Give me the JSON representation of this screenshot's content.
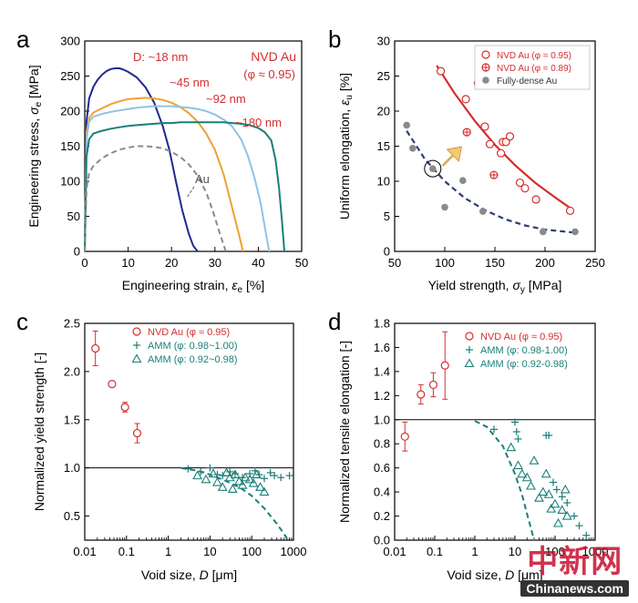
{
  "panels": {
    "a": {
      "letter": "a",
      "xlabel": "Engineering strain, ",
      "xsym": "ε",
      "xsub": "e",
      "xunit": " [%]",
      "ylabel": "Engineering stress, ",
      "ysym": "σ",
      "ysub": "e",
      "yunit": " [MPa]",
      "legend_title": "NVD Au",
      "legend_sub": "(φ ≈ 0.95)"
    },
    "b": {
      "letter": "b",
      "xlabel": "Yield strength, ",
      "xsym": "σ",
      "xsub": "y",
      "xunit": " [MPa]",
      "ylabel": "Uniform elongation, ",
      "ysym": "ε",
      "ysub": "u",
      "yunit": " [%]"
    },
    "c": {
      "letter": "c",
      "xlabel": "Void size, ",
      "xsym": "D",
      "xunit": " [μm]",
      "ylabel": "Normalized yield strength [-]"
    },
    "d": {
      "letter": "d",
      "xlabel": "Void size, ",
      "xsym": "D",
      "xunit": " [μm]",
      "ylabel": "Normalized tensile elongation [-]"
    }
  },
  "watermark": {
    "cn": "中新网",
    "en": "Chinanews.com"
  },
  "colors": {
    "red": "#d62d2d",
    "blue": "#1f2a8f",
    "orange": "#f0a030",
    "lightblue": "#8ec3e6",
    "teal": "#1a7f78",
    "gray": "#8a8a8a",
    "darkdash": "#2d3f73",
    "arrow": "#f7c873"
  },
  "chart_data": [
    {
      "panel": "a",
      "type": "line",
      "xlim": [
        0,
        50
      ],
      "ylim": [
        0,
        300
      ],
      "xticks": [
        0,
        10,
        20,
        30,
        40,
        50
      ],
      "yticks": [
        0,
        50,
        100,
        150,
        200,
        250,
        300
      ],
      "series": [
        {
          "name": "D: ~18 nm",
          "color": "blue",
          "dash": false,
          "x": [
            0,
            0.4,
            1,
            2,
            3,
            4,
            5,
            6,
            7,
            8,
            9,
            10,
            12,
            14,
            16,
            18,
            19.5,
            21,
            22.5,
            24,
            25,
            26
          ],
          "y": [
            0,
            185,
            218,
            235,
            245,
            252,
            257,
            260,
            261,
            261,
            259,
            256,
            248,
            234,
            212,
            178,
            145,
            100,
            58,
            25,
            8,
            0
          ]
        },
        {
          "name": "~45 nm",
          "color": "orange",
          "dash": false,
          "x": [
            0,
            0.4,
            1,
            2,
            4,
            6,
            8,
            10,
            12,
            14,
            16,
            18,
            20,
            22,
            24,
            26,
            28,
            30,
            32,
            34,
            35.5,
            36.5
          ],
          "y": [
            0,
            170,
            190,
            198,
            204,
            210,
            214,
            217,
            218,
            219,
            218,
            216,
            212,
            206,
            197,
            185,
            168,
            145,
            110,
            62,
            25,
            0
          ]
        },
        {
          "name": "~92 nm",
          "color": "lightblue",
          "dash": false,
          "x": [
            0,
            0.4,
            1,
            2,
            4,
            6,
            8,
            10,
            12,
            14,
            16,
            18,
            20,
            22,
            24,
            26,
            28,
            30,
            32,
            34,
            36,
            37.5,
            39,
            40.5,
            41.5,
            42.5
          ],
          "y": [
            0,
            160,
            185,
            192,
            196,
            199,
            201,
            203,
            205,
            206,
            207,
            207,
            207,
            206,
            205,
            203,
            200,
            195,
            188,
            178,
            160,
            138,
            108,
            70,
            35,
            0
          ]
        },
        {
          "name": "~180 nm",
          "color": "teal",
          "dash": false,
          "x": [
            0,
            0.4,
            1,
            2,
            4,
            6,
            8,
            10,
            12,
            14,
            16,
            18,
            20,
            22,
            24,
            26,
            28,
            30,
            32,
            34,
            36,
            38,
            40,
            41.5,
            43,
            44,
            44.8,
            45.5,
            46
          ],
          "y": [
            0,
            135,
            160,
            168,
            172,
            175,
            177,
            179,
            180,
            181,
            182,
            183,
            183,
            184,
            184,
            184,
            184,
            184,
            184,
            183,
            182,
            180,
            176,
            170,
            158,
            130,
            90,
            40,
            0
          ]
        },
        {
          "name": "Au",
          "color": "gray",
          "dash": true,
          "x": [
            0,
            0.4,
            1,
            2,
            4,
            6,
            8,
            10,
            12,
            14,
            16,
            18,
            20,
            22,
            24,
            26,
            28,
            29.5,
            31,
            32.5
          ],
          "y": [
            0,
            90,
            112,
            122,
            133,
            140,
            145,
            148,
            150,
            150,
            149,
            147,
            142,
            135,
            124,
            108,
            84,
            58,
            28,
            0
          ]
        }
      ],
      "annotations": [
        "D: ~18 nm",
        "~45 nm",
        "~92 nm",
        "~180 nm",
        "Au"
      ]
    },
    {
      "panel": "b",
      "type": "scatter",
      "xlim": [
        50,
        250
      ],
      "ylim": [
        0,
        30
      ],
      "xticks": [
        50,
        100,
        150,
        200,
        250
      ],
      "yticks": [
        0,
        5,
        10,
        15,
        20,
        25,
        30
      ],
      "legend": [
        "NVD Au (φ ≈ 0.95)",
        "NVD Au (φ ≈ 0.89)",
        "Fully-dense Au"
      ],
      "series": [
        {
          "name": "NVD Au (φ ≈ 0.95)",
          "marker": "circle-open",
          "color": "red",
          "x": [
            96,
            121,
            133,
            140,
            145,
            156,
            158,
            161,
            165,
            175,
            180,
            191,
            225
          ],
          "y": [
            25.7,
            21.7,
            24.0,
            17.8,
            15.3,
            14.0,
            15.6,
            15.6,
            16.4,
            9.8,
            9.0,
            7.4,
            5.8
          ]
        },
        {
          "name": "NVD Au (φ ≈ 0.89)",
          "marker": "circle-cross",
          "color": "red",
          "x": [
            122,
            149
          ],
          "y": [
            17.0,
            10.9
          ]
        },
        {
          "name": "Fully-dense Au",
          "marker": "dot",
          "color": "gray",
          "x": [
            62,
            68,
            88,
            100,
            118,
            138,
            198,
            230
          ],
          "y": [
            18.0,
            14.7,
            11.8,
            6.3,
            10.1,
            5.7,
            2.8,
            2.8
          ]
        }
      ],
      "fits": [
        {
          "color": "red",
          "dash": false,
          "x": [
            92,
            110,
            130,
            150,
            170,
            190,
            210,
            228
          ],
          "y": [
            26.5,
            22.5,
            18.6,
            15.2,
            12.3,
            9.8,
            7.7,
            5.9
          ]
        },
        {
          "color": "darkdash",
          "dash": true,
          "x": [
            62,
            80,
            100,
            120,
            140,
            160,
            180,
            200,
            228
          ],
          "y": [
            17.2,
            13.2,
            10.0,
            7.6,
            5.9,
            4.6,
            3.7,
            3.1,
            2.7
          ]
        }
      ]
    },
    {
      "panel": "c",
      "type": "scatter",
      "xscale": "log",
      "xlim": [
        0.01,
        1000
      ],
      "ylim": [
        0.25,
        2.5
      ],
      "xticks": [
        0.01,
        0.1,
        1,
        10,
        100,
        1000
      ],
      "xticklabels": [
        "0.01",
        "0.1",
        "1",
        "10",
        "100",
        "1000"
      ],
      "yticks": [
        0.5,
        1.0,
        1.5,
        2.0,
        2.5
      ],
      "yticklabels": [
        "0.5",
        "1.0",
        "1.5",
        "2.0",
        "2.5"
      ],
      "reference_line": 1.0,
      "legend": [
        "NVD Au (φ ≈ 0.95)",
        "AMM (φ: 0.98~1.00)",
        "AMM (φ: 0.92~0.98)"
      ],
      "series": [
        {
          "name": "NVD Au (φ ≈ 0.95)",
          "marker": "circle-open",
          "color": "red",
          "x": [
            0.018,
            0.045,
            0.092,
            0.18
          ],
          "y": [
            2.24,
            1.87,
            1.63,
            1.36
          ],
          "err": [
            0.18,
            0.02,
            0.05,
            0.1
          ]
        },
        {
          "name": "AMM (φ: 0.98~1.00)",
          "marker": "plus",
          "color": "teal",
          "x": [
            3,
            6,
            10,
            15,
            20,
            30,
            40,
            60,
            90,
            120,
            150,
            200,
            280,
            350,
            500,
            800
          ],
          "y": [
            0.99,
            0.96,
            1.0,
            0.93,
            0.92,
            0.96,
            0.94,
            0.9,
            0.94,
            0.97,
            0.93,
            0.89,
            0.95,
            0.92,
            0.9,
            0.92
          ]
        },
        {
          "name": "AMM (φ: 0.92~0.98)",
          "marker": "triangle-open",
          "color": "teal",
          "x": [
            5,
            8,
            12,
            15,
            20,
            25,
            30,
            35,
            40,
            50,
            60,
            70,
            90,
            110,
            130,
            160,
            200
          ],
          "y": [
            0.92,
            0.88,
            0.94,
            0.85,
            0.8,
            0.95,
            0.9,
            0.78,
            0.93,
            0.86,
            0.82,
            0.9,
            0.88,
            0.84,
            0.93,
            0.8,
            0.75
          ]
        }
      ],
      "fits": [
        {
          "color": "teal",
          "dash": true,
          "x": [
            2,
            5,
            10,
            20,
            50,
            100,
            200,
            400,
            700
          ],
          "y": [
            1.0,
            0.97,
            0.93,
            0.88,
            0.8,
            0.71,
            0.58,
            0.42,
            0.27
          ]
        }
      ]
    },
    {
      "panel": "d",
      "type": "scatter",
      "xscale": "log",
      "xlim": [
        0.01,
        1000
      ],
      "ylim": [
        0,
        1.8
      ],
      "xticks": [
        0.01,
        0.1,
        1,
        10,
        100,
        1000
      ],
      "xticklabels": [
        "0.01",
        "0.1",
        "1",
        "10",
        "100",
        "1000"
      ],
      "yticks": [
        0,
        0.2,
        0.4,
        0.6,
        0.8,
        1.0,
        1.2,
        1.4,
        1.6,
        1.8
      ],
      "yticklabels": [
        "0.0",
        "0.2",
        "0.4",
        "0.6",
        "0.8",
        "1.0",
        "1.2",
        "1.4",
        "1.6",
        "1.8"
      ],
      "reference_line": 1.0,
      "legend": [
        "NVD Au (φ ≈ 0.95)",
        "AMM (φ: 0.98-1.00)",
        "AMM (φ: 0.92-0.98)"
      ],
      "series": [
        {
          "name": "NVD Au (φ ≈ 0.95)",
          "marker": "circle-open",
          "color": "red",
          "x": [
            0.018,
            0.045,
            0.092,
            0.18
          ],
          "y": [
            0.86,
            1.21,
            1.29,
            1.45
          ],
          "err": [
            0.12,
            0.08,
            0.1,
            0.28
          ]
        },
        {
          "name": "AMM (φ: 0.98-1.00)",
          "marker": "plus",
          "color": "teal",
          "x": [
            3,
            10,
            11,
            12,
            60,
            70,
            90,
            110,
            150,
            200,
            300,
            400,
            600
          ],
          "y": [
            0.92,
            0.98,
            0.9,
            0.84,
            0.87,
            0.87,
            0.48,
            0.42,
            0.36,
            0.31,
            0.2,
            0.12,
            0.04
          ]
        },
        {
          "name": "AMM (φ: 0.92-0.98)",
          "marker": "triangle-open",
          "color": "teal",
          "x": [
            8,
            12,
            15,
            20,
            25,
            30,
            40,
            50,
            60,
            70,
            80,
            100,
            120,
            150,
            180,
            200
          ],
          "y": [
            0.77,
            0.62,
            0.55,
            0.52,
            0.45,
            0.66,
            0.35,
            0.4,
            0.55,
            0.38,
            0.26,
            0.3,
            0.14,
            0.25,
            0.42,
            0.2
          ]
        }
      ],
      "fits": [
        {
          "color": "teal",
          "dash": true,
          "x": [
            1,
            2,
            5,
            10,
            15,
            20,
            25,
            30
          ],
          "y": [
            0.99,
            0.94,
            0.78,
            0.55,
            0.38,
            0.22,
            0.1,
            0.0
          ]
        }
      ]
    }
  ]
}
